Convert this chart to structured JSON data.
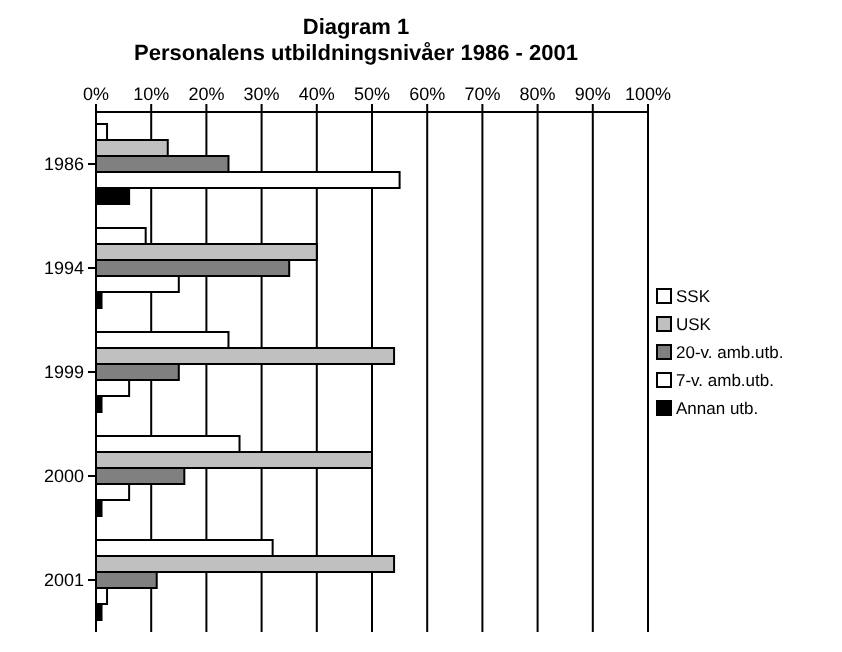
{
  "chart_data": {
    "type": "bar",
    "orientation": "horizontal",
    "title": "Diagram 1",
    "subtitle": "Personalens utbildningsnivåer 1986 - 2001",
    "categories": [
      "1986",
      "1994",
      "1999",
      "2000",
      "2001"
    ],
    "series": [
      {
        "name": "SSK",
        "color": "#ffffff",
        "values": [
          2,
          9,
          24,
          26,
          32
        ]
      },
      {
        "name": "USK",
        "color": "#c0c0c0",
        "values": [
          13,
          40,
          54,
          50,
          54
        ]
      },
      {
        "name": "20-v. amb.utb.",
        "color": "#808080",
        "values": [
          24,
          35,
          15,
          16,
          11
        ]
      },
      {
        "name": "7-v. amb.utb.",
        "color": "#ffffff",
        "values": [
          55,
          15,
          6,
          6,
          2
        ]
      },
      {
        "name": "Annan utb.",
        "color": "#000000",
        "values": [
          6,
          1,
          1,
          1,
          1
        ]
      }
    ],
    "xlim": [
      0,
      100
    ],
    "xticks": [
      {
        "value": 0,
        "label": "0%"
      },
      {
        "value": 10,
        "label": "10%"
      },
      {
        "value": 20,
        "label": "20%"
      },
      {
        "value": 30,
        "label": "30%"
      },
      {
        "value": 40,
        "label": "40%"
      },
      {
        "value": 50,
        "label": "50%"
      },
      {
        "value": 60,
        "label": "60%"
      },
      {
        "value": 70,
        "label": "70%"
      },
      {
        "value": 80,
        "label": "80%"
      },
      {
        "value": 90,
        "label": "90%"
      },
      {
        "value": 100,
        "label": "100%"
      }
    ],
    "grid": "x",
    "legend": "right"
  }
}
